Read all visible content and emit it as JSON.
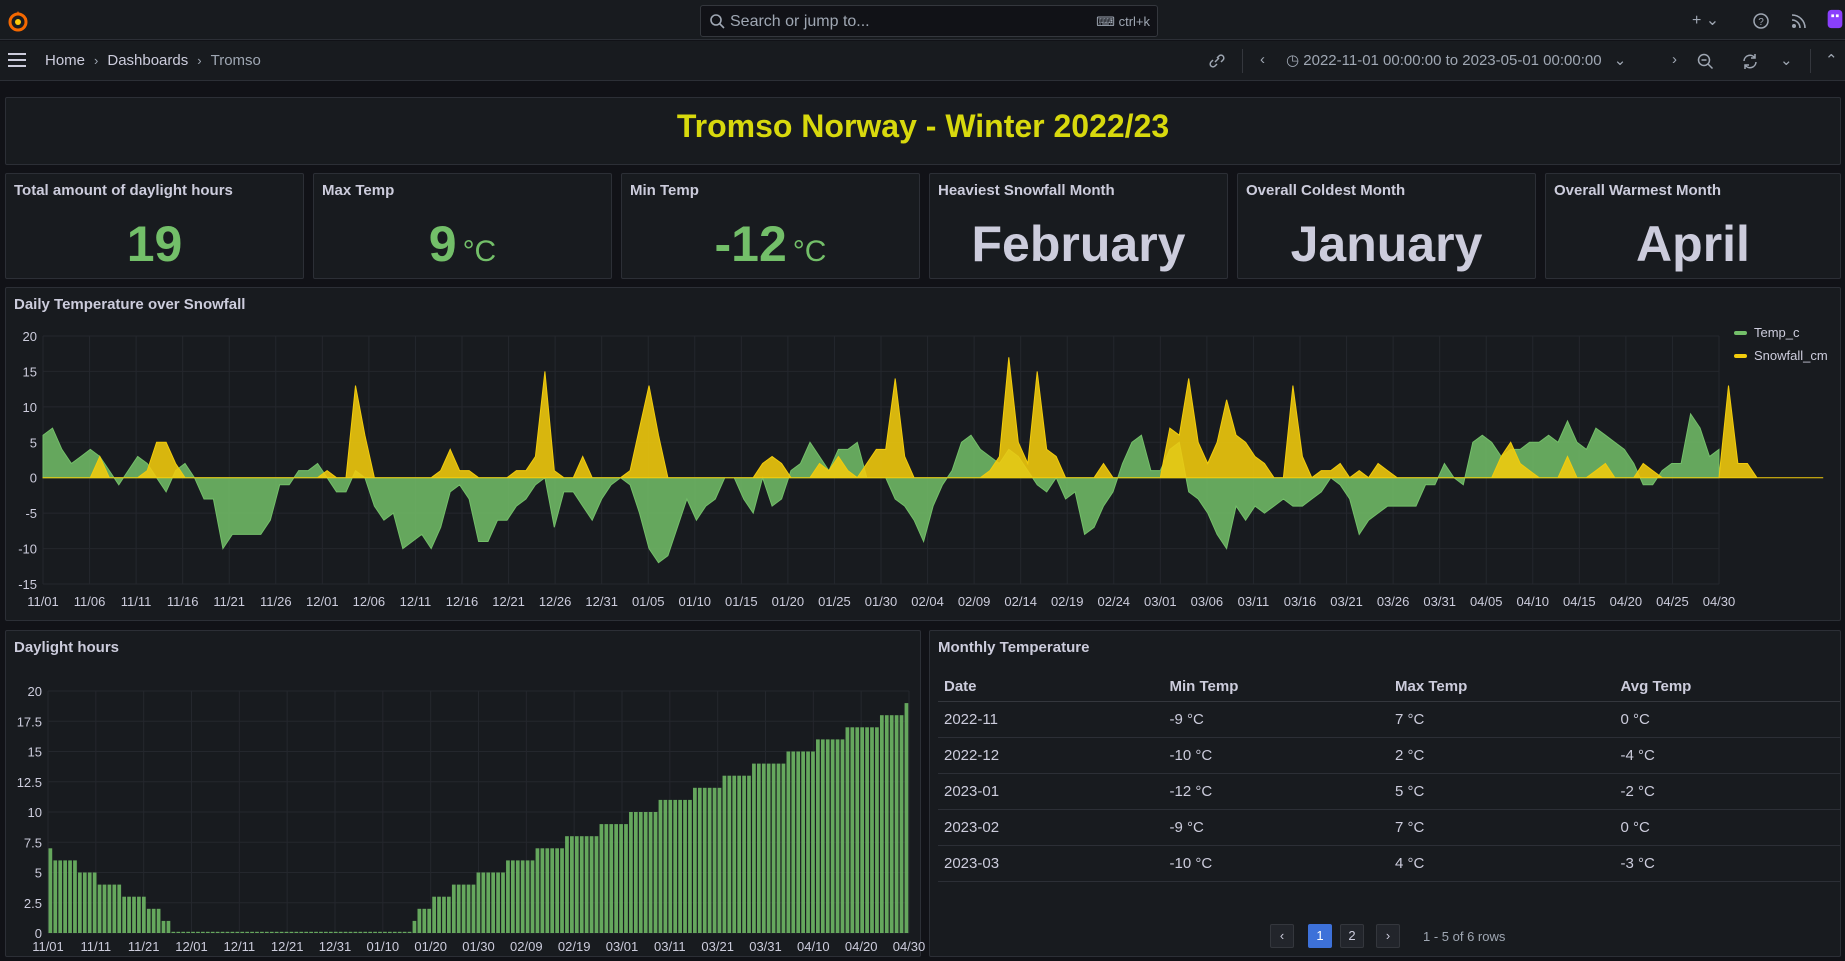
{
  "topbar": {
    "search_placeholder": "Search or jump to...",
    "search_shortcut": "ctrl+k"
  },
  "navbar": {
    "breadcrumbs": [
      "Home",
      "Dashboards",
      "Tromso"
    ],
    "time_range": "2022-11-01 00:00:00 to 2023-05-01 00:00:00"
  },
  "title_panel": {
    "text": "Tromso Norway - Winter 2022/23"
  },
  "stats": [
    {
      "title": "Total amount of daylight hours",
      "value": "19",
      "unit": ""
    },
    {
      "title": "Max Temp",
      "value": "9",
      "unit": "°C"
    },
    {
      "title": "Min Temp",
      "value": "-12",
      "unit": "°C"
    },
    {
      "title": "Heaviest Snowfall Month",
      "value": "February",
      "unit": ""
    },
    {
      "title": "Overall Coldest Month",
      "value": "January",
      "unit": ""
    },
    {
      "title": "Overall Warmest Month",
      "value": "April",
      "unit": ""
    }
  ],
  "colors": {
    "green": "#73bf69",
    "yellow": "#f2cc0c",
    "title_yellow": "#d8d90d",
    "accent_blue": "#3d71d9"
  },
  "chart_data": [
    {
      "type": "area",
      "title": "Daily Temperature over Snowfall",
      "ylim": [
        -15,
        20
      ],
      "y_ticks": [
        20,
        15,
        10,
        5,
        0,
        -5,
        -10,
        -15
      ],
      "x_tick_labels": [
        "11/01",
        "11/06",
        "11/11",
        "11/16",
        "11/21",
        "11/26",
        "12/01",
        "12/06",
        "12/11",
        "12/16",
        "12/21",
        "12/26",
        "12/31",
        "01/05",
        "01/10",
        "01/15",
        "01/20",
        "01/25",
        "01/30",
        "02/04",
        "02/09",
        "02/14",
        "02/19",
        "02/24",
        "03/01",
        "03/06",
        "03/11",
        "03/16",
        "03/21",
        "03/26",
        "03/31",
        "04/05",
        "04/10",
        "04/15",
        "04/20",
        "04/25",
        "04/30"
      ],
      "legend_placement": "right",
      "series": [
        {
          "name": "Temp_c",
          "color": "#73bf69",
          "values": [
            6,
            7,
            4,
            2,
            3,
            4,
            3,
            1,
            -1,
            1,
            3,
            2,
            0,
            -2,
            1,
            2,
            0,
            -3,
            -3,
            -10,
            -8,
            -8,
            -8,
            -8,
            -6,
            -1,
            -1,
            1,
            1,
            2,
            0,
            -2,
            -2,
            1,
            0,
            -4,
            -6,
            -5,
            -10,
            -9,
            -8,
            -10,
            -7,
            -2,
            -1,
            -3,
            -9,
            -9,
            -6,
            -6,
            -4,
            -3,
            -1,
            0,
            -7,
            -2,
            -2,
            -4,
            -6,
            -3,
            -1,
            0,
            -1,
            -5,
            -10,
            -12,
            -11,
            -7,
            -3,
            -6,
            -4,
            -3,
            0,
            0,
            -3,
            -5,
            0,
            -4,
            -3,
            1,
            2,
            5,
            3,
            1,
            4,
            4,
            5,
            0,
            0,
            0,
            -3,
            -4,
            -6,
            -9,
            -4,
            -1,
            1,
            5,
            6,
            4,
            3,
            2,
            4,
            3,
            1,
            -1,
            -2,
            0,
            -3,
            -2,
            -8,
            -7,
            -4,
            -2,
            2,
            5,
            6,
            1,
            1,
            4,
            5,
            -2,
            -3,
            -5,
            -8,
            -10,
            -4,
            -6,
            -4,
            -5,
            -4,
            -3,
            -4,
            -4,
            -3,
            -2,
            0,
            -1,
            -3,
            -8,
            -6,
            -5,
            -4,
            -4,
            -4,
            -4,
            -1,
            -1,
            2,
            0,
            -1,
            5,
            6,
            5,
            3,
            4,
            4,
            5,
            5,
            6,
            5,
            8,
            5,
            4,
            7,
            6,
            5,
            4,
            2,
            -1,
            -1,
            1,
            2,
            2,
            9,
            7,
            3,
            4
          ]
        },
        {
          "name": "Snowfall_cm",
          "color": "#f2cc0c",
          "values": [
            0,
            0,
            0,
            0,
            0,
            0,
            3,
            0,
            0,
            0,
            0,
            1,
            5,
            5,
            2,
            0,
            0,
            0,
            0,
            0,
            0,
            0,
            0,
            0,
            0,
            0,
            0,
            0,
            0,
            0,
            1,
            0,
            0,
            13,
            6,
            0,
            0,
            0,
            0,
            0,
            0,
            0,
            1,
            4,
            1,
            1,
            0,
            0,
            0,
            0,
            1,
            1,
            3,
            15,
            1,
            0,
            0,
            3,
            0,
            0,
            0,
            0,
            1,
            7,
            13,
            6,
            0,
            0,
            0,
            0,
            0,
            0,
            0,
            0,
            0,
            0,
            2,
            3,
            2,
            0,
            0,
            0,
            2,
            1,
            3,
            1,
            0,
            2,
            4,
            4,
            14,
            3,
            0,
            0,
            0,
            0,
            0,
            0,
            0,
            0,
            1,
            3,
            17,
            5,
            2,
            15,
            4,
            3,
            0,
            0,
            0,
            0,
            2,
            0,
            0,
            0,
            0,
            0,
            0,
            7,
            6,
            14,
            5,
            2,
            5,
            11,
            6,
            5,
            3,
            2,
            0,
            0,
            13,
            3,
            0,
            1,
            1,
            2,
            0,
            1,
            0,
            2,
            1,
            0,
            0,
            0,
            0,
            0,
            0,
            0,
            0,
            0,
            0,
            0,
            3,
            5,
            2,
            1,
            0,
            0,
            0,
            3,
            0,
            0,
            1,
            2,
            0,
            0,
            0,
            2,
            1,
            0,
            0,
            0,
            0,
            0,
            0,
            0,
            13,
            2,
            2,
            0,
            0,
            0,
            0,
            0,
            0,
            0,
            0
          ]
        }
      ]
    },
    {
      "type": "bar",
      "title": "Daylight hours",
      "ylim": [
        0,
        20
      ],
      "y_ticks": [
        20,
        17.5,
        15,
        12.5,
        10,
        7.5,
        5,
        2.5,
        0
      ],
      "x_tick_labels": [
        "11/01",
        "11/11",
        "11/21",
        "12/01",
        "12/11",
        "12/21",
        "12/31",
        "01/10",
        "01/20",
        "01/30",
        "02/09",
        "02/19",
        "03/01",
        "03/11",
        "03/21",
        "03/31",
        "04/10",
        "04/20",
        "04/30"
      ],
      "series": [
        {
          "name": "",
          "color": "#73bf69",
          "values": [
            7,
            6,
            6,
            6,
            6,
            6,
            5,
            5,
            5,
            5,
            4,
            4,
            4,
            4,
            4,
            3,
            3,
            3,
            3,
            3,
            2,
            2,
            2,
            1,
            1,
            0.1,
            0.1,
            0.1,
            0.1,
            0.1,
            0.1,
            0.1,
            0.1,
            0.1,
            0.1,
            0.1,
            0.1,
            0.1,
            0.1,
            0.1,
            0.1,
            0.1,
            0.1,
            0.1,
            0.1,
            0.1,
            0.1,
            0.1,
            0.1,
            0.1,
            0.1,
            0.1,
            0.1,
            0.1,
            0.1,
            0.1,
            0.1,
            0.1,
            0.1,
            0.1,
            0.1,
            0.1,
            0.1,
            0.1,
            0.1,
            0.1,
            0.1,
            0.1,
            0.1,
            0.1,
            0.1,
            0.1,
            0.1,
            0.1,
            1,
            2,
            2,
            2,
            3,
            3,
            3,
            3,
            4,
            4,
            4,
            4,
            4,
            5,
            5,
            5,
            5,
            5,
            5,
            6,
            6,
            6,
            6,
            6,
            6,
            7,
            7,
            7,
            7,
            7,
            7,
            8,
            8,
            8,
            8,
            8,
            8,
            8,
            9,
            9,
            9,
            9,
            9,
            9,
            10,
            10,
            10,
            10,
            10,
            10,
            11,
            11,
            11,
            11,
            11,
            11,
            11,
            12,
            12,
            12,
            12,
            12,
            12,
            13,
            13,
            13,
            13,
            13,
            13,
            14,
            14,
            14,
            14,
            14,
            14,
            14,
            15,
            15,
            15,
            15,
            15,
            15,
            16,
            16,
            16,
            16,
            16,
            16,
            17,
            17,
            17,
            17,
            17,
            17,
            17,
            18,
            18,
            18,
            18,
            18,
            19
          ]
        }
      ]
    }
  ],
  "table": {
    "title": "Monthly Temperature",
    "columns": [
      "Date",
      "Min Temp",
      "Max Temp",
      "Avg Temp"
    ],
    "rows": [
      [
        "2022-11",
        "-9 °C",
        "7 °C",
        "0 °C"
      ],
      [
        "2022-12",
        "-10 °C",
        "2 °C",
        "-4 °C"
      ],
      [
        "2023-01",
        "-12 °C",
        "5 °C",
        "-2 °C"
      ],
      [
        "2023-02",
        "-9 °C",
        "7 °C",
        "0 °C"
      ],
      [
        "2023-03",
        "-10 °C",
        "4 °C",
        "-3 °C"
      ]
    ],
    "pager": {
      "pages": [
        "1",
        "2"
      ],
      "active": "1",
      "summary": "1 - 5 of 6 rows"
    }
  }
}
